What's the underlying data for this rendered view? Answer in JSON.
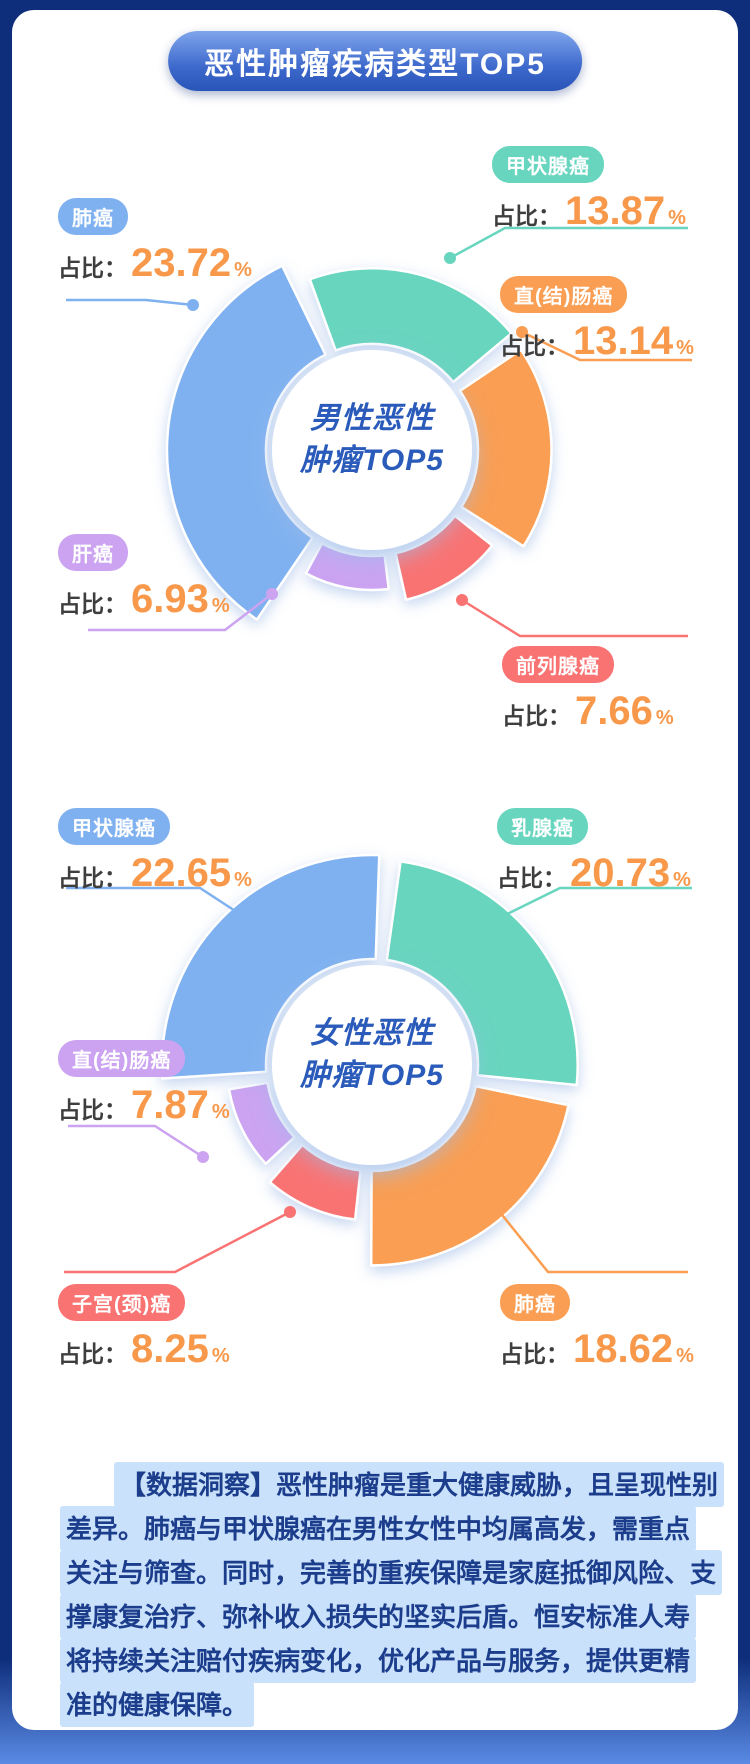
{
  "page": {
    "title_badge": "恶性肿瘤疾病类型TOP5"
  },
  "colors": {
    "background_navy": "#0E2E7B",
    "card_white": "#FFFFFF",
    "accent_number_orange": "#F8984A",
    "center_text_blue": "#2B5BBA",
    "insight_text_navy": "#1C3D8C",
    "insight_highlight": "#C9E1FA"
  },
  "chart_data": [
    {
      "type": "pie",
      "title": "男性恶性肿瘤TOP5",
      "center_label_lines": [
        "男性恶性",
        "肿瘤TOP5"
      ],
      "value_prefix": "占比：",
      "unit": "%",
      "entries": [
        {
          "label": "甲状腺癌",
          "value": 13.87,
          "color": "#68D5BF"
        },
        {
          "label": "直(结)肠癌",
          "value": 13.14,
          "color": "#F99E52"
        },
        {
          "label": "前列腺癌",
          "value": 7.66,
          "color": "#F97373"
        },
        {
          "label": "肝癌",
          "value": 6.93,
          "color": "#CBA3F1"
        },
        {
          "label": "肺癌",
          "value": 23.72,
          "color": "#7FB1F0"
        }
      ]
    },
    {
      "type": "pie",
      "title": "女性恶性肿瘤TOP5",
      "center_label_lines": [
        "女性恶性",
        "肿瘤TOP5"
      ],
      "value_prefix": "占比：",
      "unit": "%",
      "entries": [
        {
          "label": "乳腺癌",
          "value": 20.73,
          "color": "#68D5BF"
        },
        {
          "label": "肺癌",
          "value": 18.62,
          "color": "#F99E52"
        },
        {
          "label": "子宫(颈)癌",
          "value": 8.25,
          "color": "#F97373"
        },
        {
          "label": "直(结)肠癌",
          "value": 7.87,
          "color": "#CBA3F1"
        },
        {
          "label": "甲状腺癌",
          "value": 22.65,
          "color": "#7FB1F0"
        }
      ]
    }
  ],
  "insight": {
    "lines": [
      "【数据洞察】恶性肿瘤是重大健康威胁，且呈现性别",
      "差异。肺癌与甲状腺癌在男性女性中均属高发，需重点",
      "关注与筛查。同时，完善的重疾保障是家庭抵御风险、支",
      "撑康复治疗、弥补收入损失的坚实后盾。恒安标准人寿",
      "将持续关注赔付疾病变化，优化产品与服务，提供更精",
      "准的健康保障。"
    ]
  }
}
